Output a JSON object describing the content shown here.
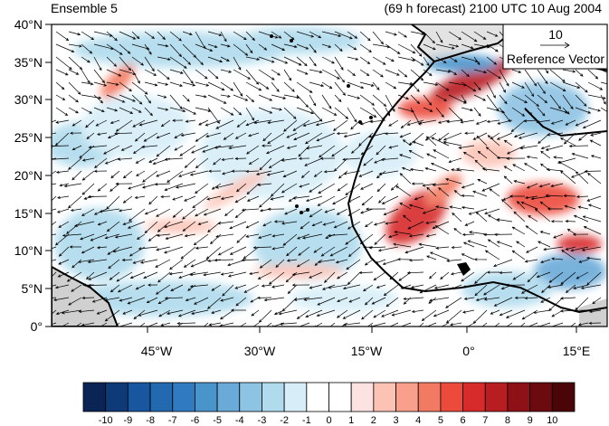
{
  "header": {
    "left_title": "Ensemble 5",
    "right_title": "(69 h forecast) 2100 UTC 10 Aug 2004"
  },
  "map": {
    "lat_labels": [
      "40°N",
      "35°N",
      "30°N",
      "25°N",
      "20°N",
      "15°N",
      "10°N",
      "5°N",
      "0°"
    ],
    "lon_labels": [
      "45°W",
      "30°W",
      "15°W",
      "0°",
      "15°E"
    ],
    "land_color": "#d0d0d0"
  },
  "reference_vector": {
    "magnitude": "10",
    "label": "Reference Vector"
  },
  "colorbar": {
    "labels": [
      "-10",
      "-9",
      "-8",
      "-7",
      "-6",
      "-5",
      "-4",
      "-3",
      "-2",
      "-1",
      "0",
      "1",
      "2",
      "3",
      "4",
      "5",
      "6",
      "7",
      "8",
      "9",
      "10"
    ],
    "colors": [
      "#0a2455",
      "#0e3a78",
      "#1857a0",
      "#2369b0",
      "#2f7ac0",
      "#4a94cc",
      "#6aaad8",
      "#8dc3e3",
      "#b0dbed",
      "#d7eef8",
      "#ffffff",
      "#ffffff",
      "#fde2e2",
      "#fcc3b5",
      "#f9a08c",
      "#f37a62",
      "#ec4b3c",
      "#d72a2a",
      "#b81d22",
      "#8f1118",
      "#6b0a0f",
      "#4a0508"
    ]
  }
}
